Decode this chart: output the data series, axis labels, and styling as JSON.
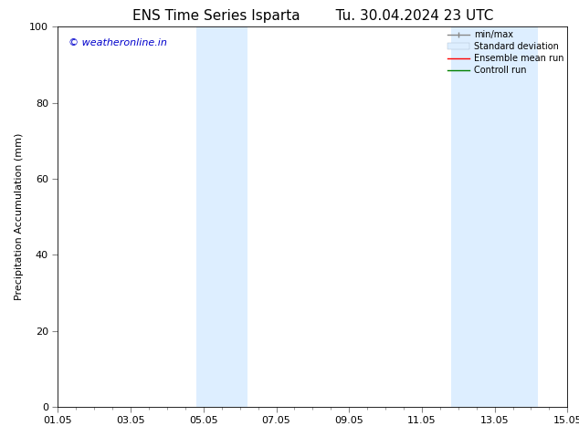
{
  "title_left": "ENS Time Series Isparta",
  "title_right": "Tu. 30.04.2024 23 UTC",
  "ylabel": "Precipitation Accumulation (mm)",
  "xlim_start": 0,
  "xlim_end": 14,
  "ylim": [
    0,
    100
  ],
  "xtick_labels": [
    "01.05",
    "03.05",
    "05.05",
    "07.05",
    "09.05",
    "11.05",
    "13.05",
    "15.05"
  ],
  "xtick_positions": [
    0,
    2,
    4,
    6,
    8,
    10,
    12,
    14
  ],
  "ytick_positions": [
    0,
    20,
    40,
    60,
    80,
    100
  ],
  "shaded_bands": [
    {
      "x_start": 3.8,
      "x_end": 5.2
    },
    {
      "x_start": 10.8,
      "x_end": 13.2
    }
  ],
  "band_color": "#ddeeff",
  "watermark_text": "© weatheronline.in",
  "watermark_color": "#0000cc",
  "watermark_fontsize": 8,
  "legend_fontsize": 7,
  "title_fontsize": 11,
  "axis_fontsize": 8,
  "tick_fontsize": 8,
  "bg_color": "#ffffff"
}
